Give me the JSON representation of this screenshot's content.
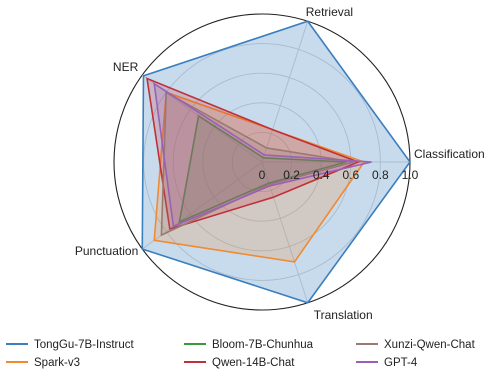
{
  "chart_data": {
    "type": "radar",
    "title": "",
    "axes": [
      "Classification",
      "Retrieval",
      "NER",
      "Punctuation",
      "Translation"
    ],
    "rlim": [
      0,
      1.0
    ],
    "ticks": [
      "0",
      "0.2",
      "0.4",
      "0.6",
      "0.8",
      "1.0"
    ],
    "tick_values": [
      0,
      0.2,
      0.4,
      0.6,
      0.8,
      1.0
    ],
    "grid": true,
    "legend_position": "bottom",
    "series": [
      {
        "name": "TongGu-7B-Instruct",
        "color": "#3b7fbf",
        "fill": "#3b7fbf",
        "fill_opacity": 0.28,
        "values": [
          1.0,
          1.0,
          0.99,
          1.0,
          1.0
        ]
      },
      {
        "name": "Spark-v3",
        "color": "#f28a30",
        "fill": "#f28a30",
        "fill_opacity": 0.22,
        "values": [
          0.69,
          0.23,
          0.8,
          0.9,
          0.71
        ]
      },
      {
        "name": "Bloom-7B-Chunhua",
        "color": "#3a9a3a",
        "fill": "#3a9a3a",
        "fill_opacity": 0.22,
        "values": [
          0.57,
          0.03,
          0.53,
          0.69,
          0.15
        ]
      },
      {
        "name": "Qwen-14B-Chat",
        "color": "#c0303a",
        "fill": "#c0303a",
        "fill_opacity": 0.22,
        "values": [
          0.65,
          0.23,
          0.96,
          0.77,
          0.25
        ]
      },
      {
        "name": "Xunzi-Qwen-Chat",
        "color": "#9a7a70",
        "fill": "#9a7a70",
        "fill_opacity": 0.22,
        "values": [
          0.62,
          0.1,
          0.8,
          0.84,
          0.16
        ]
      },
      {
        "name": "GPT-4",
        "color": "#9a60b8",
        "fill": "#9a60b8",
        "fill_opacity": 0.18,
        "values": [
          0.74,
          0.05,
          0.9,
          0.74,
          0.17
        ]
      }
    ]
  }
}
